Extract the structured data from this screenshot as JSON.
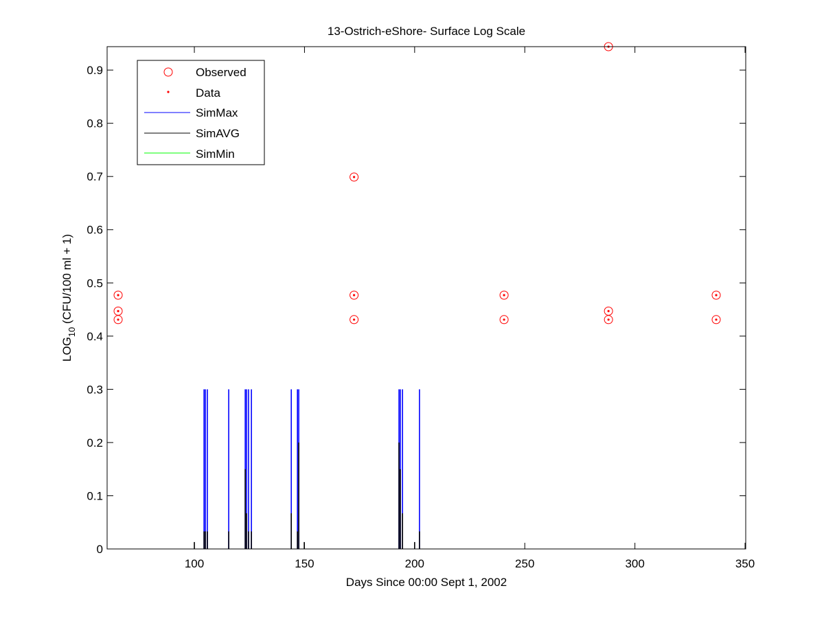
{
  "chart_data": {
    "type": "scatter",
    "title": "13-Ostrich-eShore- Surface Log Scale",
    "xlabel": "Days Since 00:00 Sept 1, 2002",
    "ylabel_main": "LOG",
    "ylabel_sub": "10",
    "ylabel_rest": " (CFU/100 ml + 1)",
    "xlim": [
      60.4,
      350.3
    ],
    "ylim": [
      0,
      0.944
    ],
    "xticks": [
      100,
      150,
      200,
      250,
      300,
      350
    ],
    "yticks": [
      0,
      0.1,
      0.2,
      0.3,
      0.4,
      0.5,
      0.6,
      0.7,
      0.8,
      0.9
    ],
    "grid": false,
    "legend_position": "top-left",
    "legend": [
      "Observed",
      "Data",
      "SimMax",
      "SimAVG",
      "SimMin"
    ],
    "colors": {
      "observed": "#ff0000",
      "simmax": "#0000ff",
      "simavg": "#000000",
      "simmin": "#00ff00"
    },
    "observed": [
      [
        65.4,
        0.477
      ],
      [
        65.4,
        0.447
      ],
      [
        65.4,
        0.431
      ],
      [
        172.5,
        0.699
      ],
      [
        172.5,
        0.477
      ],
      [
        172.5,
        0.431
      ],
      [
        240.6,
        0.477
      ],
      [
        240.6,
        0.431
      ],
      [
        288.0,
        0.944
      ],
      [
        288.0,
        0.447
      ],
      [
        288.0,
        0.431
      ],
      [
        336.9,
        0.477
      ],
      [
        336.9,
        0.431
      ]
    ],
    "sim_spikes": [
      {
        "x": 104.4,
        "max": 0.3,
        "avg": 0.033
      },
      {
        "x": 105.0,
        "max": 0.3,
        "avg": 0.033
      },
      {
        "x": 105.9,
        "max": 0.3,
        "avg": 0.033
      },
      {
        "x": 115.6,
        "max": 0.3,
        "avg": 0.033
      },
      {
        "x": 123.1,
        "max": 0.3,
        "avg": 0.15
      },
      {
        "x": 123.7,
        "max": 0.3,
        "avg": 0.067
      },
      {
        "x": 124.6,
        "max": 0.3,
        "avg": 0.033
      },
      {
        "x": 125.9,
        "max": 0.3,
        "avg": 0.033
      },
      {
        "x": 144.0,
        "max": 0.3,
        "avg": 0.067
      },
      {
        "x": 146.8,
        "max": 0.3,
        "avg": 0.033
      },
      {
        "x": 147.4,
        "max": 0.3,
        "avg": 0.2
      },
      {
        "x": 192.9,
        "max": 0.3,
        "avg": 0.2
      },
      {
        "x": 193.5,
        "max": 0.3,
        "avg": 0.15
      },
      {
        "x": 194.5,
        "max": 0.3,
        "avg": 0.067
      },
      {
        "x": 202.2,
        "max": 0.3,
        "avg": 0.033
      },
      {
        "x": 100.0,
        "max": 0,
        "avg": 0.013
      },
      {
        "x": 149.9,
        "max": 0,
        "avg": 0.013
      },
      {
        "x": 200.0,
        "max": 0,
        "avg": 0.013
      }
    ]
  }
}
